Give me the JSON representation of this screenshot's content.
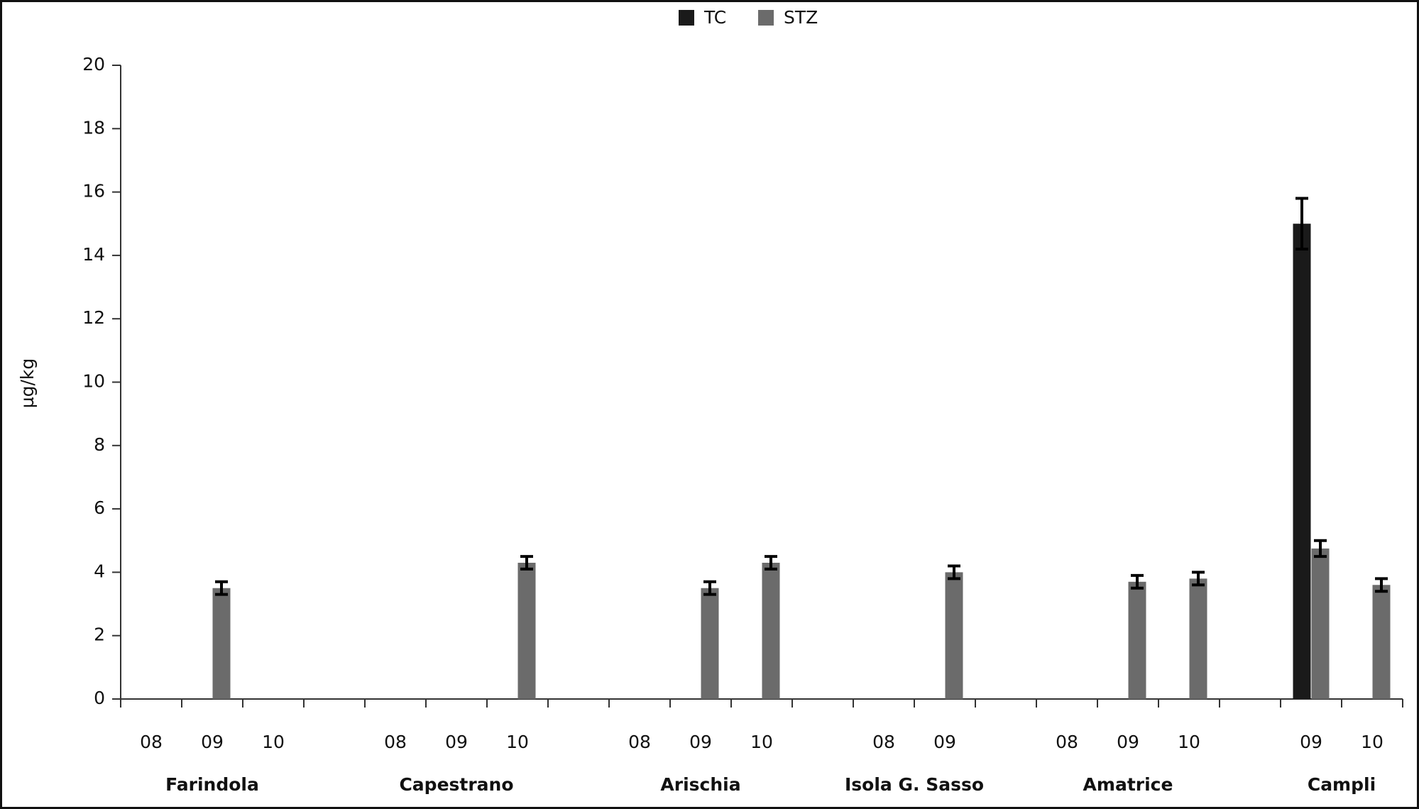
{
  "chart_data": {
    "type": "bar",
    "y_label": "µg/kg",
    "categories": [
      "08",
      "09",
      "10",
      null,
      "08",
      "09",
      "10",
      null,
      "08",
      "09",
      "10",
      null,
      "08",
      "09",
      null,
      "08",
      "09",
      "10",
      null,
      "09",
      "10"
    ],
    "groups": [
      "Farindola",
      "Capestrano",
      "Arischia",
      "Isola G. Sasso",
      "Amatrice",
      "Campli"
    ],
    "series": [
      {
        "name": "TC",
        "color": "#1a1a1a",
        "values": [
          null,
          null,
          null,
          null,
          null,
          null,
          null,
          null,
          null,
          null,
          null,
          null,
          null,
          null,
          null,
          null,
          null,
          null,
          null,
          15.0,
          null
        ],
        "errors": [
          null,
          null,
          null,
          null,
          null,
          null,
          null,
          null,
          null,
          null,
          null,
          null,
          null,
          null,
          null,
          null,
          null,
          null,
          null,
          0.8,
          null
        ]
      },
      {
        "name": "STZ",
        "color": "#6b6b6b",
        "values": [
          null,
          3.5,
          null,
          null,
          null,
          null,
          4.3,
          null,
          null,
          3.5,
          4.3,
          null,
          null,
          4.0,
          null,
          null,
          3.7,
          3.8,
          null,
          4.75,
          3.6
        ],
        "errors": [
          null,
          0.2,
          null,
          null,
          null,
          null,
          0.2,
          null,
          null,
          0.2,
          0.2,
          null,
          null,
          0.2,
          null,
          null,
          0.2,
          0.2,
          null,
          0.25,
          0.2
        ]
      }
    ],
    "ylim": [
      0,
      20
    ],
    "yticks": [
      0,
      2,
      4,
      6,
      8,
      10,
      12,
      14,
      16,
      18,
      20
    ]
  }
}
